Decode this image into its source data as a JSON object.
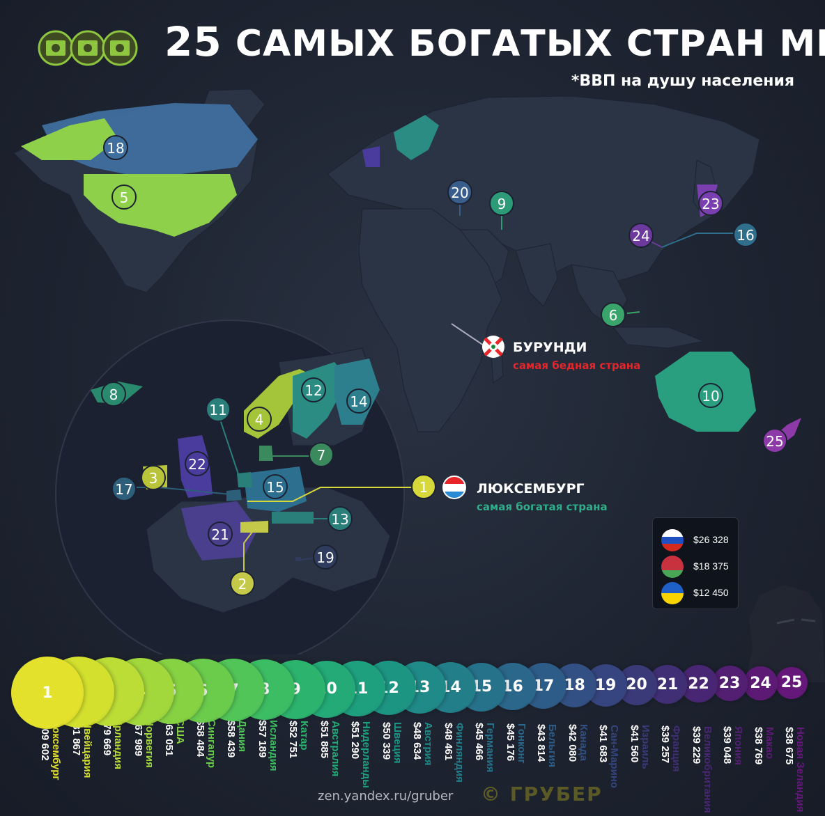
{
  "title": {
    "number": "25",
    "text": "САМЫХ БОГАТЫХ СТРАН МИРА"
  },
  "subtitle": "*ВВП на душу населения",
  "annotations": {
    "poorest": {
      "country": "БУРУНДИ",
      "label": "самая бедная страна"
    },
    "richest": {
      "country": "ЛЮКСЕМБУРГ",
      "label": "самая богатая страна"
    }
  },
  "map_markers": [
    {
      "rank": "18",
      "color": "#3f6f9e"
    },
    {
      "rank": "5",
      "color": "#8fd04b"
    },
    {
      "rank": "20",
      "color": "#3a5e8c"
    },
    {
      "rank": "9",
      "color": "#2d9a78"
    },
    {
      "rank": "23",
      "color": "#7a3fae"
    },
    {
      "rank": "24",
      "color": "#6b3a9c"
    },
    {
      "rank": "16",
      "color": "#2f6f8c"
    },
    {
      "rank": "6",
      "color": "#3aa56a"
    },
    {
      "rank": "10",
      "color": "#2a9f80"
    },
    {
      "rank": "25",
      "color": "#8d3aa8"
    },
    {
      "rank": "8",
      "color": "#2a8a6e"
    },
    {
      "rank": "12",
      "color": "#2b8c84"
    },
    {
      "rank": "14",
      "color": "#2d7f8e"
    },
    {
      "rank": "11",
      "color": "#2a7f7a"
    },
    {
      "rank": "4",
      "color": "#a4c43a"
    },
    {
      "rank": "7",
      "color": "#3a8a5e"
    },
    {
      "rank": "22",
      "color": "#4a3c9c"
    },
    {
      "rank": "3",
      "color": "#b9c43a"
    },
    {
      "rank": "15",
      "color": "#2c6f8f"
    },
    {
      "rank": "17",
      "color": "#2d5f7a"
    },
    {
      "rank": "1",
      "color": "#d7d93a"
    },
    {
      "rank": "13",
      "color": "#2a7f7a"
    },
    {
      "rank": "21",
      "color": "#4a3f8c"
    },
    {
      "rank": "19",
      "color": "#2f3c5e"
    },
    {
      "rank": "2",
      "color": "#c4c94a"
    }
  ],
  "legend": [
    {
      "country_flag": "russia-flag",
      "value": "$26 328"
    },
    {
      "country_flag": "belarus-flag",
      "value": "$18 375"
    },
    {
      "country_flag": "ukraine-flag",
      "value": "$12 450"
    }
  ],
  "ranking": [
    {
      "rank": "1",
      "country": "Люксембург",
      "value": "$109 602",
      "color": "#e3e12c"
    },
    {
      "rank": "2",
      "country": "Швейцария",
      "value": "$81 867",
      "color": "#d3e02e"
    },
    {
      "rank": "3",
      "country": "Ирландия",
      "value": "$79 669",
      "color": "#bcdc36"
    },
    {
      "rank": "4",
      "country": "Норвегия",
      "value": "$67 989",
      "color": "#a3d83c"
    },
    {
      "rank": "5",
      "country": "США",
      "value": "$63 051",
      "color": "#86d243"
    },
    {
      "rank": "6",
      "country": "Сингапур",
      "value": "$58 484",
      "color": "#6bcc4c"
    },
    {
      "rank": "7",
      "country": "Дания",
      "value": "$58 439",
      "color": "#52c558"
    },
    {
      "rank": "8",
      "country": "Исландия",
      "value": "$57 189",
      "color": "#3dbd63"
    },
    {
      "rank": "9",
      "country": "Катар",
      "value": "$52 751",
      "color": "#2cb46e"
    },
    {
      "rank": "10",
      "country": "Австралия",
      "value": "$51 885",
      "color": "#23aa77"
    },
    {
      "rank": "11",
      "country": "Нидерланды",
      "value": "$51 290",
      "color": "#1ea07e"
    },
    {
      "rank": "12",
      "country": "Швеция",
      "value": "$50 339",
      "color": "#1d9583"
    },
    {
      "rank": "13",
      "country": "Австрия",
      "value": "$48 634",
      "color": "#1f8a87"
    },
    {
      "rank": "14",
      "country": "Финляндия",
      "value": "$48 461",
      "color": "#227e89"
    },
    {
      "rank": "15",
      "country": "Германия",
      "value": "$45 466",
      "color": "#26728a"
    },
    {
      "rank": "16",
      "country": "Гонконг",
      "value": "$45 176",
      "color": "#2a678a"
    },
    {
      "rank": "17",
      "country": "Бельгия",
      "value": "$43 814",
      "color": "#2e5c88"
    },
    {
      "rank": "18",
      "country": "Канада",
      "value": "$42 080",
      "color": "#325084"
    },
    {
      "rank": "19",
      "country": "Сан-Марино",
      "value": "$41 683",
      "color": "#36457f"
    },
    {
      "rank": "20",
      "country": "Израиль",
      "value": "$41 560",
      "color": "#3b3a79"
    },
    {
      "rank": "21",
      "country": "Франция",
      "value": "$39 257",
      "color": "#412f75"
    },
    {
      "rank": "22",
      "country": "Великобритания",
      "value": "$39 229",
      "color": "#492673"
    },
    {
      "rank": "23",
      "country": "Япония",
      "value": "$39 048",
      "color": "#521f73"
    },
    {
      "rank": "24",
      "country": "Макао",
      "value": "$38 769",
      "color": "#5c1a75"
    },
    {
      "rank": "25",
      "country": "Новая Зеландия",
      "value": "$38 675",
      "color": "#66177a"
    }
  ],
  "footer": {
    "source": "zen.yandex.ru/gruber",
    "brand": "© ГРУБЕР"
  }
}
